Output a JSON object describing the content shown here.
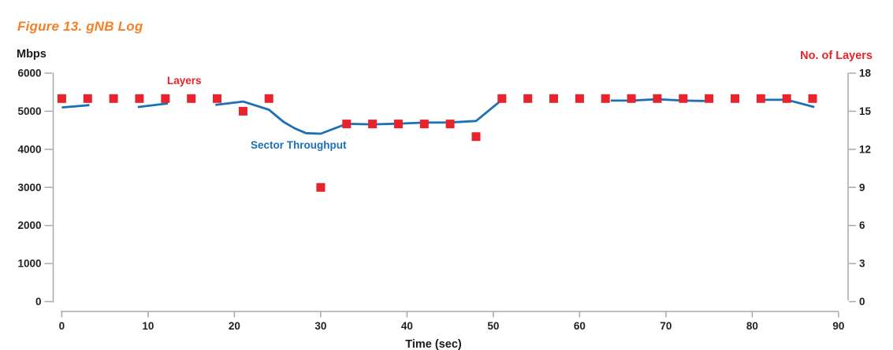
{
  "figure": {
    "title": "Figure 13. gNB Log"
  },
  "colors": {
    "title_orange": "#f58025",
    "series_red": "#e8232b",
    "series_blue": "#1c70b8",
    "axis_gray": "#a6a8ab",
    "text_black": "#231f20"
  },
  "chart_data": {
    "type": "line",
    "title": "Figure 13. gNB Log",
    "x_axis": {
      "label": "Time (sec)",
      "ticks": [
        0,
        10,
        20,
        30,
        40,
        50,
        60,
        70,
        80,
        90
      ],
      "range": [
        0,
        90
      ]
    },
    "y_axis_left": {
      "label": "Mbps",
      "ticks": [
        0,
        1000,
        2000,
        3000,
        4000,
        5000,
        6000
      ],
      "range": [
        0,
        6000
      ]
    },
    "y_axis_right": {
      "label": "No. of Layers",
      "ticks": [
        0,
        3,
        6,
        9,
        12,
        15,
        18
      ],
      "range": [
        0,
        18
      ]
    },
    "grid": false,
    "legend": "inline-annotations",
    "series": [
      {
        "name": "Sector Throughput",
        "type": "line",
        "axis": "left",
        "color": "#1c70b8",
        "units": "Mbps",
        "segments_t_mbps": [
          [
            [
              0,
              5100
            ],
            [
              3.2,
              5160
            ]
          ],
          [
            [
              8.8,
              5110
            ],
            [
              12.3,
              5205
            ]
          ],
          [
            [
              17.8,
              5165
            ],
            [
              21,
              5255
            ],
            [
              24,
              5040
            ],
            [
              25.7,
              4720
            ],
            [
              27,
              4550
            ],
            [
              28.3,
              4425
            ],
            [
              30,
              4410
            ],
            [
              33,
              4670
            ],
            [
              36,
              4655
            ],
            [
              39,
              4675
            ],
            [
              42,
              4700
            ],
            [
              45,
              4705
            ],
            [
              48,
              4745
            ],
            [
              51,
              5300
            ]
          ],
          [
            [
              63.6,
              5280
            ],
            [
              66,
              5280
            ],
            [
              69,
              5315
            ],
            [
              72,
              5280
            ],
            [
              74.5,
              5268
            ]
          ],
          [
            [
              81.3,
              5300
            ],
            [
              84,
              5300
            ],
            [
              87.2,
              5110
            ]
          ]
        ]
      },
      {
        "name": "Layers",
        "type": "scatter_square",
        "axis": "right",
        "color": "#e8232b",
        "units": "layers",
        "points_t_layers": [
          [
            0,
            16
          ],
          [
            3,
            16
          ],
          [
            6,
            16
          ],
          [
            9,
            16
          ],
          [
            12,
            16
          ],
          [
            15,
            16
          ],
          [
            18,
            16
          ],
          [
            21,
            15
          ],
          [
            24,
            16
          ],
          [
            30,
            9
          ],
          [
            33,
            14
          ],
          [
            36,
            14
          ],
          [
            39,
            14
          ],
          [
            42,
            14
          ],
          [
            45,
            14
          ],
          [
            48,
            13
          ],
          [
            51,
            16
          ],
          [
            54,
            16
          ],
          [
            57,
            16
          ],
          [
            60,
            16
          ],
          [
            63,
            16
          ],
          [
            66,
            16
          ],
          [
            69,
            16
          ],
          [
            72,
            16
          ],
          [
            75,
            16
          ],
          [
            78,
            16
          ],
          [
            81,
            16
          ],
          [
            84,
            16
          ],
          [
            87,
            16
          ]
        ]
      }
    ],
    "annotations": [
      {
        "text": "Layers",
        "color": "#e8232b"
      },
      {
        "text": "Sector Throughput",
        "color": "#1c70b8"
      }
    ]
  }
}
